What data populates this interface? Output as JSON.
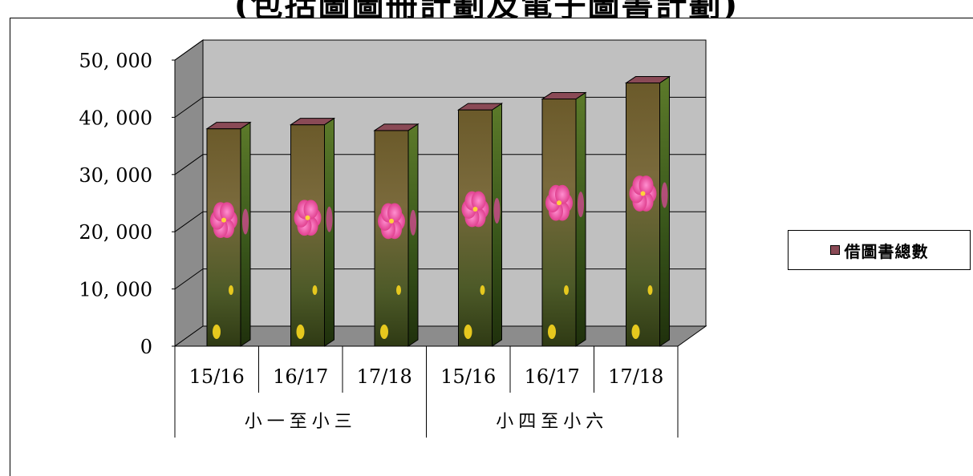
{
  "title": "(包括圖圖冊計劃及電子圖書計劃)",
  "legend": {
    "label": "借圖書總數",
    "color": "#8a4a56"
  },
  "chart_data": {
    "type": "bar",
    "title": "(包括圖圖冊計劃及電子圖書計劃)",
    "categories": [
      "15/16",
      "16/17",
      "17/18",
      "15/16",
      "16/17",
      "17/18"
    ],
    "groups": [
      {
        "label": "小一至小三",
        "categories": [
          "15/16",
          "16/17",
          "17/18"
        ]
      },
      {
        "label": "小四至小六",
        "categories": [
          "15/16",
          "16/17",
          "17/18"
        ]
      }
    ],
    "series": [
      {
        "name": "借圖書總數",
        "values": [
          38000,
          38700,
          37700,
          41300,
          43200,
          46000
        ]
      }
    ],
    "yticks": [
      "0",
      "10, 000",
      "20, 000",
      "30, 000",
      "40, 000",
      "50, 000"
    ],
    "ylim": [
      0,
      50000
    ],
    "grid": true,
    "style": "3d-column",
    "legend_position": "right"
  }
}
